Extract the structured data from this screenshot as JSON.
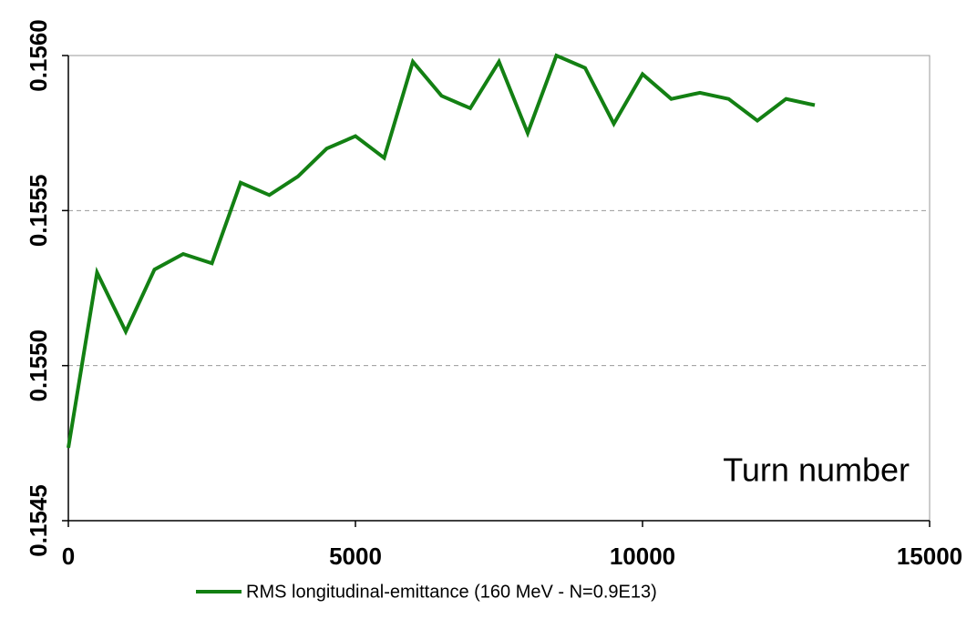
{
  "chart_data": {
    "type": "line",
    "annotation": "Turn number",
    "x": [
      0,
      500,
      1000,
      1500,
      2000,
      2500,
      3000,
      3500,
      4000,
      4500,
      5000,
      5500,
      6000,
      6500,
      7000,
      7500,
      8000,
      8500,
      9000,
      9500,
      10000,
      10500,
      11000,
      11500,
      12000,
      12500,
      13000
    ],
    "series": [
      {
        "name": "RMS longitudinal-emittance (160 MeV - N=0.9E13)",
        "color": "#138013",
        "values": [
          0.154735,
          0.1553,
          0.15511,
          0.15531,
          0.15536,
          0.15533,
          0.15559,
          0.15555,
          0.15561,
          0.1557,
          0.15574,
          0.15567,
          0.15598,
          0.15587,
          0.15583,
          0.15598,
          0.15575,
          0.156,
          0.15596,
          0.15578,
          0.15594,
          0.15586,
          0.15588,
          0.15586,
          0.15579,
          0.15586,
          0.15584
        ]
      }
    ],
    "xlim": [
      0,
      15000
    ],
    "xticks": [
      0,
      5000,
      10000,
      15000
    ],
    "ylim": [
      0.1545,
      0.156
    ],
    "yticks": [
      0.1545,
      {
        "value": 0.155,
        "label": "0.1550"
      },
      0.1555,
      {
        "value": 0.156,
        "label": "0.1560"
      }
    ],
    "grid": true
  }
}
